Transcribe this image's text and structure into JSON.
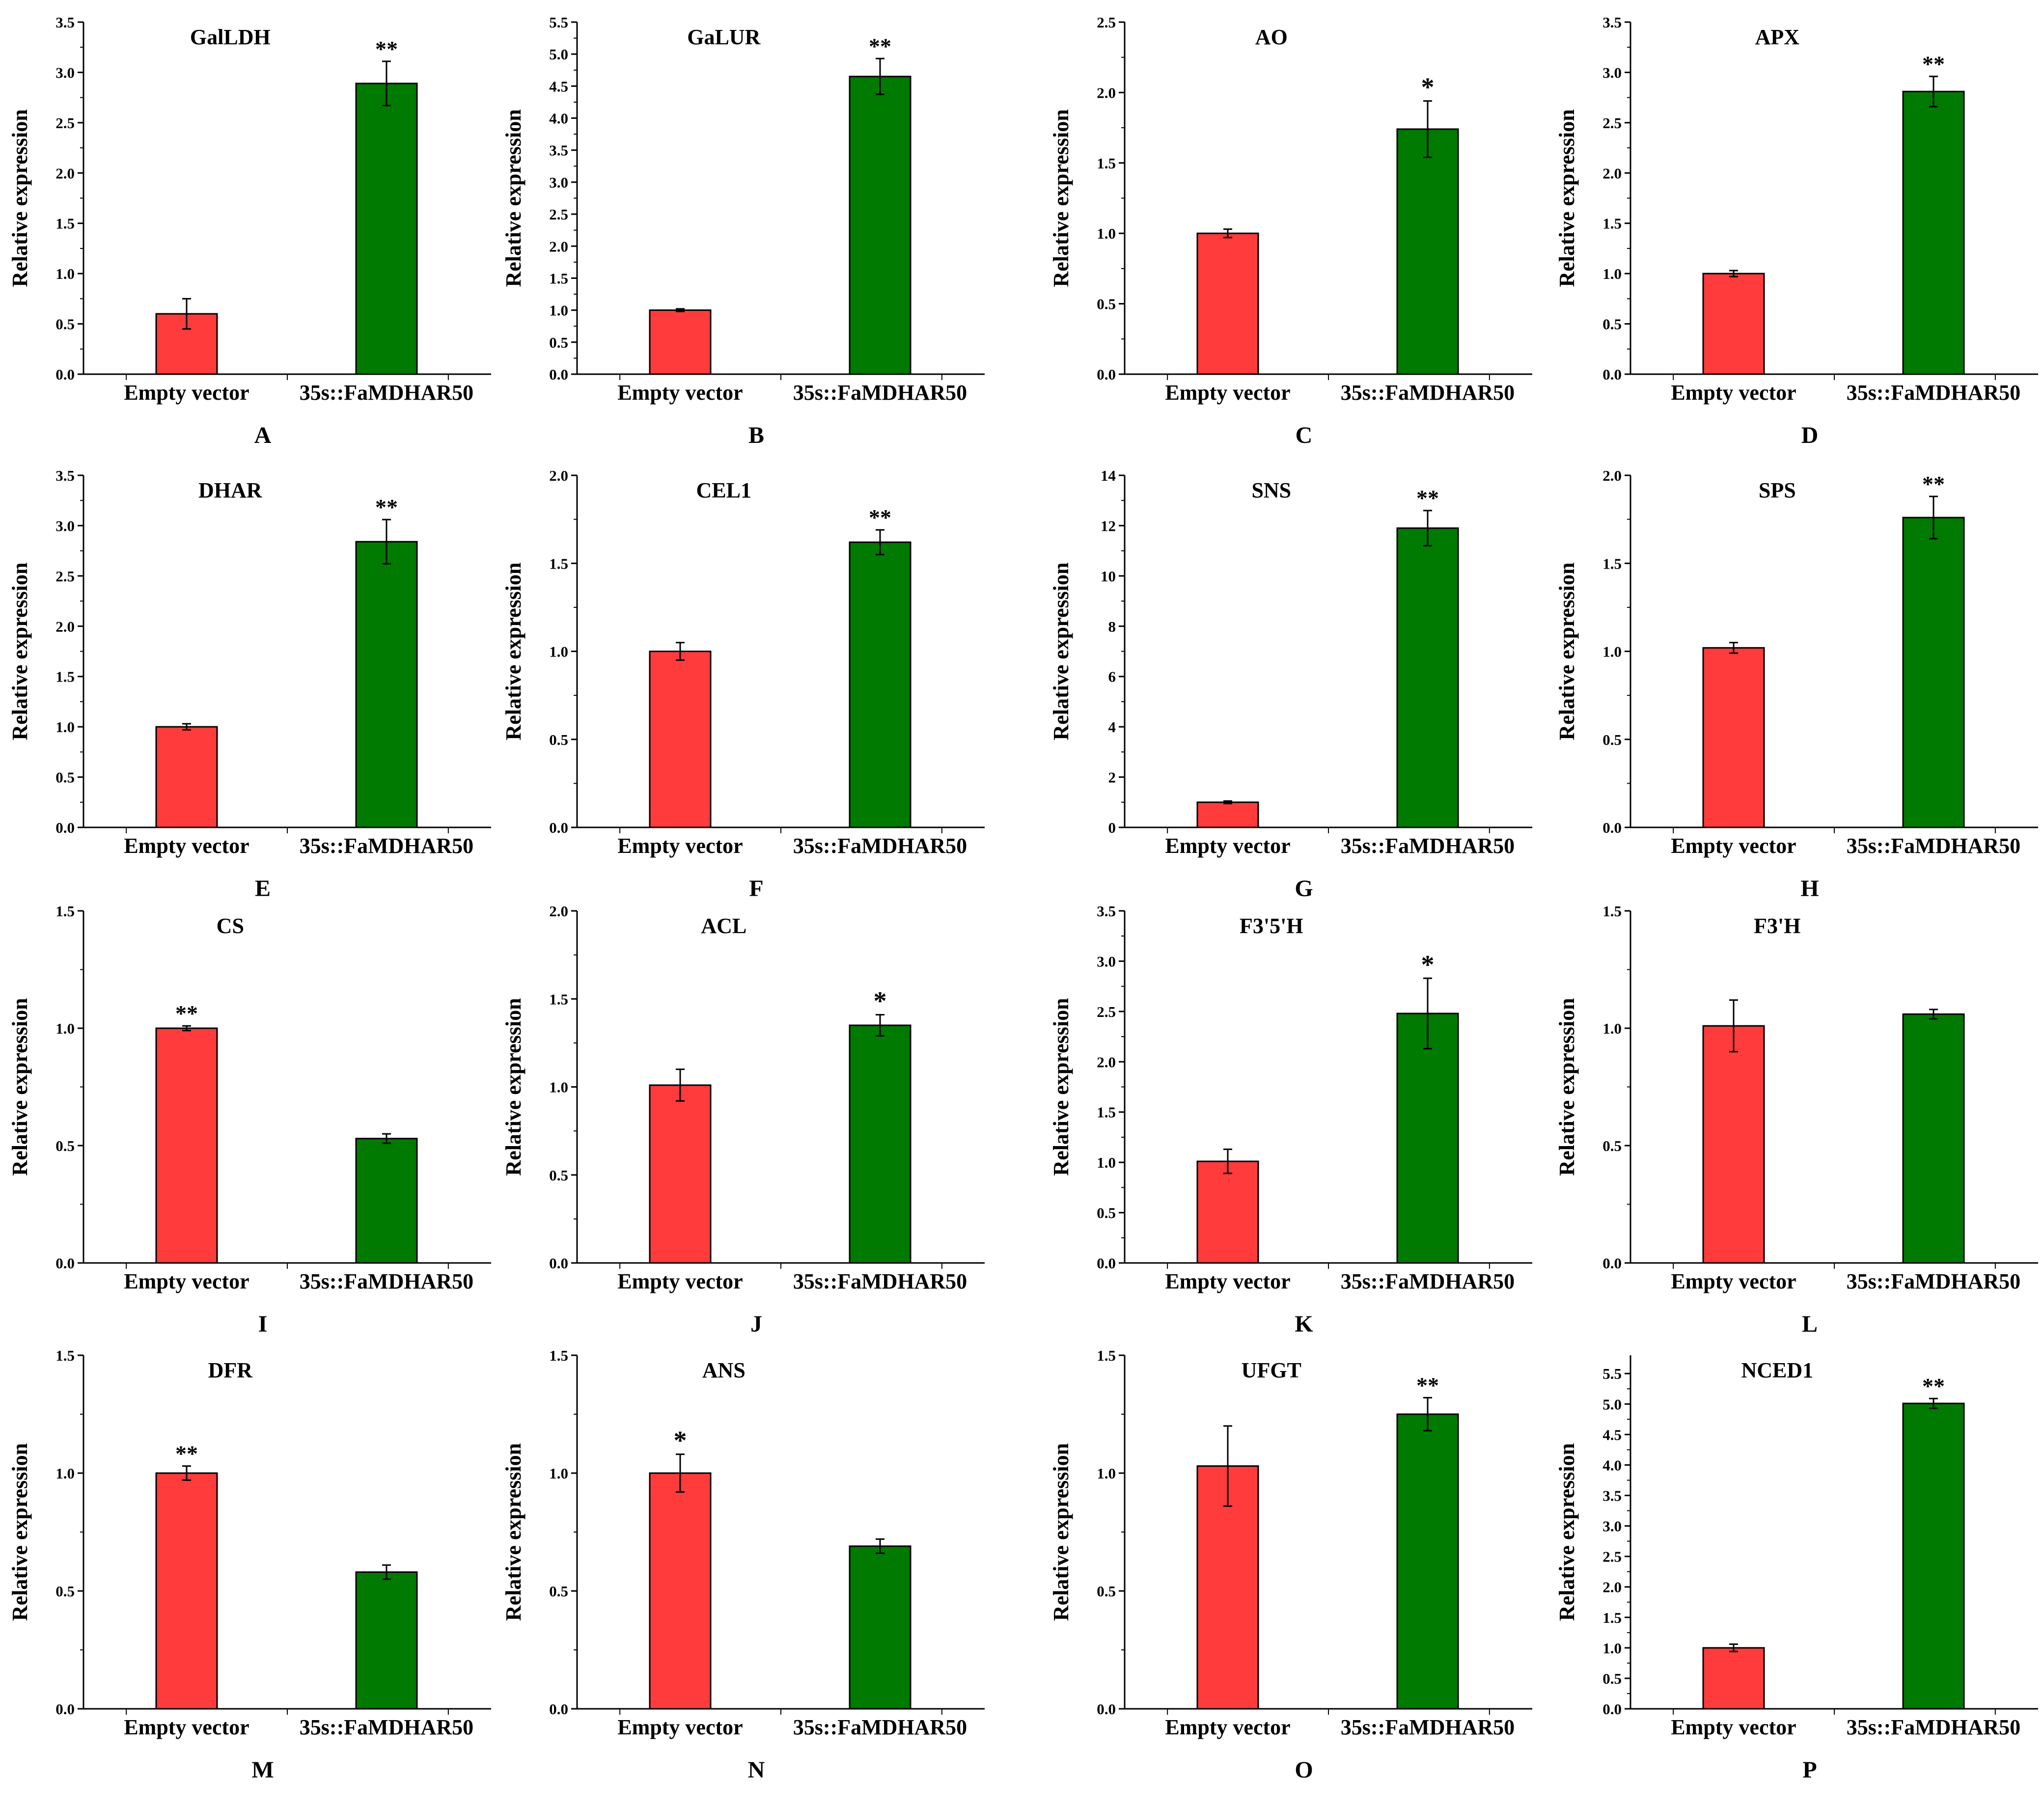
{
  "figure": {
    "ylabel": "Relative expression",
    "categories": [
      "Empty vector",
      "35s::FaMDHAR50"
    ],
    "colors": {
      "empty": "#ff3b3b",
      "transgenic": "#007a00",
      "axis": "#000000"
    }
  },
  "chart_data": [
    {
      "type": "bar",
      "letter": "A",
      "title": "GalLDH",
      "ylabel": "Relative expression",
      "categories": [
        "Empty vector",
        "35s::FaMDHAR50"
      ],
      "values": [
        0.6,
        2.89
      ],
      "errors": [
        0.15,
        0.22
      ],
      "sig": [
        "",
        "**"
      ],
      "ylim": [
        0,
        3.5
      ],
      "yticks": [
        "0.0",
        "0.5",
        "1.0",
        "1.5",
        "2.0",
        "2.5",
        "3.0",
        "3.5"
      ]
    },
    {
      "type": "bar",
      "letter": "B",
      "title": "GaLUR",
      "ylabel": "Relative expression",
      "categories": [
        "Empty vector",
        "35s::FaMDHAR50"
      ],
      "values": [
        1.0,
        4.65
      ],
      "errors": [
        0.02,
        0.28
      ],
      "sig": [
        "",
        "**"
      ],
      "ylim": [
        0,
        5.5
      ],
      "yticks": [
        "0.0",
        "0.5",
        "1.0",
        "1.5",
        "2.0",
        "2.5",
        "3.0",
        "3.5",
        "4.0",
        "4.5",
        "5.0",
        "5.5"
      ]
    },
    {
      "type": "bar",
      "letter": "C",
      "title": "AO",
      "ylabel": "Relative expression",
      "categories": [
        "Empty vector",
        "35s::FaMDHAR50"
      ],
      "values": [
        1.0,
        1.74
      ],
      "errors": [
        0.03,
        0.2
      ],
      "sig": [
        "",
        "*"
      ],
      "ylim": [
        0,
        2.5
      ],
      "yticks": [
        "0.0",
        "0.5",
        "1.0",
        "1.5",
        "2.0",
        "2.5"
      ]
    },
    {
      "type": "bar",
      "letter": "D",
      "title": "APX",
      "ylabel": "Relative expression",
      "categories": [
        "Empty vector",
        "35s::FaMDHAR50"
      ],
      "values": [
        1.0,
        2.81
      ],
      "errors": [
        0.03,
        0.15
      ],
      "sig": [
        "",
        "**"
      ],
      "ylim": [
        0,
        3.5
      ],
      "yticks": [
        "0.0",
        "0.5",
        "1.0",
        "1.5",
        "2.0",
        "2.5",
        "3.0",
        "3.5"
      ]
    },
    {
      "type": "bar",
      "letter": "E",
      "title": "DHAR",
      "ylabel": "Relative expression",
      "categories": [
        "Empty vector",
        "35s::FaMDHAR50"
      ],
      "values": [
        1.0,
        2.84
      ],
      "errors": [
        0.03,
        0.22
      ],
      "sig": [
        "",
        "**"
      ],
      "ylim": [
        0,
        3.5
      ],
      "yticks": [
        "0.0",
        "0.5",
        "1.0",
        "1.5",
        "2.0",
        "2.5",
        "3.0",
        "3.5"
      ]
    },
    {
      "type": "bar",
      "letter": "F",
      "title": "CEL1",
      "ylabel": "Relative expression",
      "categories": [
        "Empty vector",
        "35s::FaMDHAR50"
      ],
      "values": [
        1.0,
        1.62
      ],
      "errors": [
        0.05,
        0.07
      ],
      "sig": [
        "",
        "**"
      ],
      "ylim": [
        0,
        2.0
      ],
      "yticks": [
        "0.0",
        "0.5",
        "1.0",
        "1.5",
        "2.0"
      ]
    },
    {
      "type": "bar",
      "letter": "G",
      "title": "SNS",
      "ylabel": "Relative expression",
      "categories": [
        "Empty vector",
        "35s::FaMDHAR50"
      ],
      "values": [
        1.0,
        11.9
      ],
      "errors": [
        0.05,
        0.7
      ],
      "sig": [
        "",
        "**"
      ],
      "ylim": [
        0,
        14
      ],
      "yticks": [
        "0",
        "2",
        "4",
        "6",
        "8",
        "10",
        "12",
        "14"
      ]
    },
    {
      "type": "bar",
      "letter": "H",
      "title": "SPS",
      "ylabel": "Relative expression",
      "categories": [
        "Empty vector",
        "35s::FaMDHAR50"
      ],
      "values": [
        1.02,
        1.76
      ],
      "errors": [
        0.03,
        0.12
      ],
      "sig": [
        "",
        "**"
      ],
      "ylim": [
        0,
        2.0
      ],
      "yticks": [
        "0.0",
        "0.5",
        "1.0",
        "1.5",
        "2.0"
      ]
    },
    {
      "type": "bar",
      "letter": "I",
      "title": "CS",
      "ylabel": "Relative expression",
      "categories": [
        "Empty vector",
        "35s::FaMDHAR50"
      ],
      "values": [
        1.0,
        0.53
      ],
      "errors": [
        0.01,
        0.02
      ],
      "sig": [
        "**",
        ""
      ],
      "ylim": [
        0,
        1.5
      ],
      "yticks": [
        "0.0",
        "0.5",
        "1.0",
        "1.5"
      ]
    },
    {
      "type": "bar",
      "letter": "J",
      "title": "ACL",
      "ylabel": "Relative expression",
      "categories": [
        "Empty vector",
        "35s::FaMDHAR50"
      ],
      "values": [
        1.01,
        1.35
      ],
      "errors": [
        0.09,
        0.06
      ],
      "sig": [
        "",
        "*"
      ],
      "ylim": [
        0,
        2.0
      ],
      "yticks": [
        "0.0",
        "0.5",
        "1.0",
        "1.5",
        "2.0"
      ]
    },
    {
      "type": "bar",
      "letter": "K",
      "title": "F3'5'H",
      "ylabel": "Relative expression",
      "categories": [
        "Empty vector",
        "35s::FaMDHAR50"
      ],
      "values": [
        1.01,
        2.48
      ],
      "errors": [
        0.12,
        0.35
      ],
      "sig": [
        "",
        "*"
      ],
      "ylim": [
        0,
        3.5
      ],
      "yticks": [
        "0.0",
        "0.5",
        "1.0",
        "1.5",
        "2.0",
        "2.5",
        "3.0",
        "3.5"
      ]
    },
    {
      "type": "bar",
      "letter": "L",
      "title": "F3'H",
      "ylabel": "Relative expression",
      "categories": [
        "Empty vector",
        "35s::FaMDHAR50"
      ],
      "values": [
        1.01,
        1.06
      ],
      "errors": [
        0.11,
        0.02
      ],
      "sig": [
        "",
        ""
      ],
      "ylim": [
        0,
        1.5
      ],
      "yticks": [
        "0.0",
        "0.5",
        "1.0",
        "1.5"
      ]
    },
    {
      "type": "bar",
      "letter": "M",
      "title": "DFR",
      "ylabel": "Relative expression",
      "categories": [
        "Empty vector",
        "35s::FaMDHAR50"
      ],
      "values": [
        1.0,
        0.58
      ],
      "errors": [
        0.03,
        0.03
      ],
      "sig": [
        "**",
        ""
      ],
      "ylim": [
        0,
        1.5
      ],
      "yticks": [
        "0.0",
        "0.5",
        "1.0",
        "1.5"
      ]
    },
    {
      "type": "bar",
      "letter": "N",
      "title": "ANS",
      "ylabel": "Relative expression",
      "categories": [
        "Empty vector",
        "35s::FaMDHAR50"
      ],
      "values": [
        1.0,
        0.69
      ],
      "errors": [
        0.08,
        0.03
      ],
      "sig": [
        "*",
        ""
      ],
      "ylim": [
        0,
        1.5
      ],
      "yticks": [
        "0.0",
        "0.5",
        "1.0",
        "1.5"
      ]
    },
    {
      "type": "bar",
      "letter": "O",
      "title": "UFGT",
      "ylabel": "Relative expression",
      "categories": [
        "Empty vector",
        "35s::FaMDHAR50"
      ],
      "values": [
        1.03,
        1.25
      ],
      "errors": [
        0.17,
        0.07
      ],
      "sig": [
        "",
        "**"
      ],
      "ylim": [
        0,
        1.5
      ],
      "yticks": [
        "0.0",
        "0.5",
        "1.0",
        "1.5"
      ]
    },
    {
      "type": "bar",
      "letter": "P",
      "title": "NCED1",
      "ylabel": "Relative expression",
      "categories": [
        "Empty vector",
        "35s::FaMDHAR50"
      ],
      "values": [
        1.0,
        5.01
      ],
      "errors": [
        0.06,
        0.08
      ],
      "sig": [
        "",
        "**"
      ],
      "ylim": [
        0,
        5.8
      ],
      "yticks": [
        "0.0",
        "0.5",
        "1.0",
        "1.5",
        "2.0",
        "2.5",
        "3.0",
        "3.5",
        "4.0",
        "4.5",
        "5.0",
        "5.5"
      ]
    }
  ]
}
